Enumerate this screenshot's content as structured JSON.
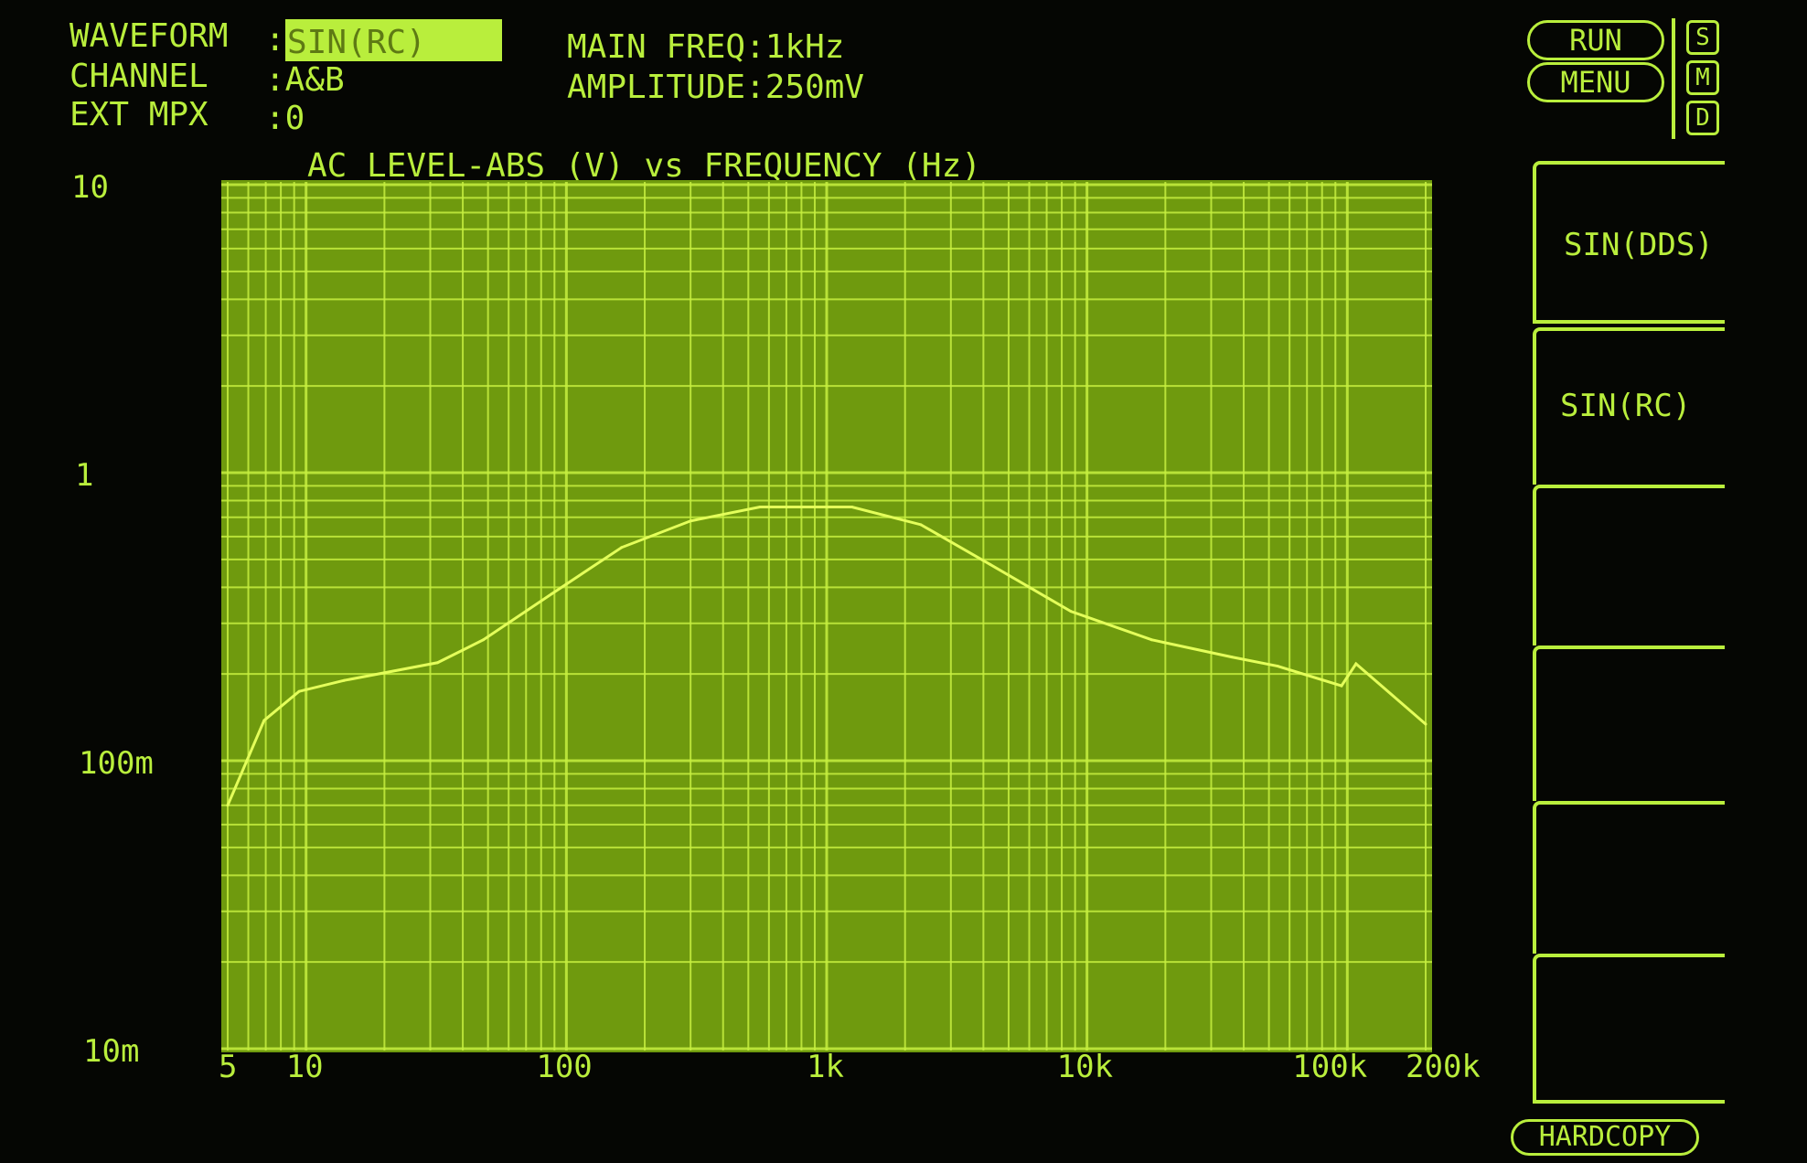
{
  "header": {
    "waveform_label": "WAVEFORM",
    "waveform_sep": ":",
    "waveform_value": "SIN(RC)",
    "channel_label": "CHANNEL",
    "channel_value": ":A&B",
    "ext_mpx_label": "EXT MPX",
    "ext_mpx_value": ":0",
    "main_freq": "MAIN FREQ:1kHz",
    "amplitude": "AMPLITUDE:250mV"
  },
  "side_panel": {
    "run_label": "RUN",
    "menu_label": "MENU",
    "mode_keys": [
      "S",
      "M",
      "D"
    ],
    "softkeys": [
      "SIN(DDS)",
      "SIN(RC)",
      "",
      "",
      "",
      ""
    ],
    "hardcopy_label": "HARDCOPY"
  },
  "colors": {
    "phosphor": "#b9ee3c",
    "plot_bg": "#6f9a0e",
    "grid": "#c7ef40",
    "background": "#050603"
  },
  "chart_data": {
    "type": "line",
    "title": "AC LEVEL-ABS (V) vs FREQUENCY (Hz)",
    "x_scale": "log",
    "y_scale": "log",
    "xlim": [
      5,
      200000
    ],
    "ylim": [
      0.01,
      10
    ],
    "grid": true,
    "x_tick_labels": [
      "5",
      "10",
      "100",
      "1k",
      "10k",
      "100k",
      "200k"
    ],
    "x_tick_values": [
      5,
      10,
      100,
      1000,
      10000,
      100000,
      200000
    ],
    "y_tick_labels": [
      "10",
      "1",
      "100m",
      "10m"
    ],
    "y_tick_values": [
      10,
      1,
      0.1,
      0.01
    ],
    "series": [
      {
        "x": [
          5,
          6.9,
          9.4,
          14,
          32,
          48,
          88,
          163,
          300,
          554,
          1250,
          2300,
          4250,
          8670,
          17700,
          36000,
          54000,
          95000,
          108000,
          200000
        ],
        "y": [
          0.07,
          0.138,
          0.174,
          0.19,
          0.219,
          0.263,
          0.38,
          0.55,
          0.68,
          0.76,
          0.76,
          0.66,
          0.48,
          0.33,
          0.263,
          0.229,
          0.213,
          0.182,
          0.217,
          0.134
        ]
      }
    ]
  }
}
